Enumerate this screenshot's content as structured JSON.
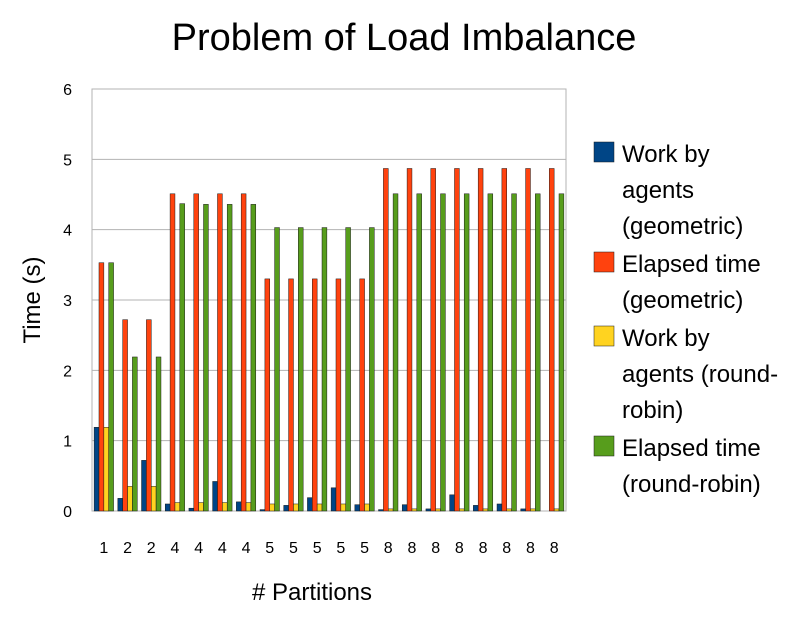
{
  "chart_data": {
    "type": "bar",
    "title": "Problem of Load Imbalance",
    "xlabel": "# Partitions",
    "ylabel": "Time (s)",
    "ylim": [
      0,
      6
    ],
    "yticks": [
      "0",
      "1",
      "2",
      "3",
      "4",
      "5",
      "6"
    ],
    "grid": true,
    "legend_position": "right",
    "categories": [
      "1",
      "2",
      "2",
      "4",
      "4",
      "4",
      "4",
      "5",
      "5",
      "5",
      "5",
      "5",
      "8",
      "8",
      "8",
      "8",
      "8",
      "8",
      "8",
      "8"
    ],
    "series": [
      {
        "name": "Work by agents (geometric)",
        "legend_lines": [
          "Work by",
          "agents",
          "(geometric)"
        ],
        "color": "#004586",
        "values": [
          1.19,
          0.18,
          0.72,
          0.1,
          0.04,
          0.42,
          0.13,
          0.02,
          0.08,
          0.19,
          0.33,
          0.09,
          0.02,
          0.09,
          0.03,
          0.23,
          0.08,
          0.1,
          0.03,
          0.0
        ]
      },
      {
        "name": "Elapsed time (geometric)",
        "legend_lines": [
          "Elapsed time",
          "(geometric)"
        ],
        "color": "#ff420e",
        "values": [
          3.53,
          2.72,
          2.72,
          4.51,
          4.51,
          4.51,
          4.51,
          3.3,
          3.3,
          3.3,
          3.3,
          3.3,
          4.87,
          4.87,
          4.87,
          4.87,
          4.87,
          4.87,
          4.87,
          4.87
        ]
      },
      {
        "name": "Work by agents (round-robin)",
        "legend_lines": [
          "Work by",
          "agents (round-",
          "robin)"
        ],
        "color": "#ffd320",
        "values": [
          1.19,
          0.35,
          0.35,
          0.12,
          0.12,
          0.12,
          0.12,
          0.1,
          0.1,
          0.1,
          0.1,
          0.1,
          0.03,
          0.03,
          0.03,
          0.03,
          0.03,
          0.03,
          0.03,
          0.03
        ]
      },
      {
        "name": "Elapsed time (round-robin)",
        "legend_lines": [
          "Elapsed time",
          "(round-robin)"
        ],
        "color": "#579d1c",
        "values": [
          3.53,
          2.19,
          2.19,
          4.37,
          4.36,
          4.36,
          4.36,
          4.03,
          4.03,
          4.03,
          4.03,
          4.03,
          4.51,
          4.51,
          4.51,
          4.51,
          4.51,
          4.51,
          4.51,
          4.51
        ]
      }
    ]
  }
}
